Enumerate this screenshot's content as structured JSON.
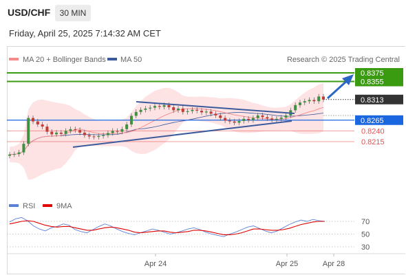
{
  "header": {
    "symbol": "USD/CHF",
    "timeframe": "30 MIN",
    "datetime": "Friday, April 25, 2025 7:14:32 AM CET"
  },
  "legend": {
    "ma20_label": "MA 20 + Bollinger Bands",
    "ma50_label": "MA 50",
    "credit": "Research © 2025 Trading Central",
    "rsi_label": "RSI",
    "rsi_ma_label": "9MA"
  },
  "colors": {
    "ma20": "#f48a8a",
    "ma50": "#3a5a9c",
    "bands_fill": "#fde3e3",
    "target": "#3a9a10",
    "pivot": "#1a66e0",
    "support": "#e25050",
    "current": "#333333",
    "trendline": "#3a5a9c",
    "rsi": "#5a80d8",
    "rsi_ma": "#e00000"
  },
  "levels": {
    "target2": "0.8375",
    "target1": "0.8355",
    "current": "0.8313",
    "pivot": "0.8265",
    "support1": "0.8240",
    "support2": "0.8215"
  },
  "chart_data": [
    {
      "type": "candlestick",
      "title": "USD/CHF 30 MIN",
      "y_range_approx": [
        0.8135,
        0.8385
      ],
      "x_labels": [
        "Apr 24",
        "Apr 25",
        "Apr 28"
      ],
      "price_closes_approx": [
        0.8185,
        0.8186,
        0.819,
        0.821,
        0.827,
        0.8262,
        0.8255,
        0.825,
        0.8238,
        0.8232,
        0.8236,
        0.8233,
        0.824,
        0.8244,
        0.8242,
        0.8236,
        0.823,
        0.8227,
        0.8226,
        0.8228,
        0.823,
        0.8235,
        0.824,
        0.8238,
        0.8244,
        0.8255,
        0.8275,
        0.8284,
        0.8289,
        0.8292,
        0.8294,
        0.8298,
        0.8296,
        0.83,
        0.8295,
        0.8288,
        0.8292,
        0.8284,
        0.8286,
        0.8289,
        0.8287,
        0.8283,
        0.8285,
        0.828,
        0.8276,
        0.827,
        0.8264,
        0.8262,
        0.8259,
        0.8263,
        0.8268,
        0.8265,
        0.827,
        0.8276,
        0.8272,
        0.8269,
        0.8266,
        0.8268,
        0.8271,
        0.8276,
        0.8288,
        0.83,
        0.8306,
        0.8309,
        0.8312,
        0.8309,
        0.832,
        0.8313
      ],
      "ma20_label": "MA 20 + Bollinger Bands",
      "ma50_label": "MA 50",
      "levels": [
        {
          "label": "0.8375",
          "role": "target"
        },
        {
          "label": "0.8355",
          "role": "target"
        },
        {
          "label": "0.8313",
          "role": "current"
        },
        {
          "label": "0.8265",
          "role": "pivot"
        },
        {
          "label": "0.8240",
          "role": "support"
        },
        {
          "label": "0.8215",
          "role": "support"
        }
      ],
      "pattern": "symmetrical triangle with upward breakout arrow toward 0.8375"
    },
    {
      "type": "line",
      "title": "RSI",
      "series": [
        {
          "name": "RSI",
          "values": [
            69,
            74,
            76,
            71,
            63,
            58,
            55,
            60,
            62,
            66,
            64,
            57,
            54,
            52,
            57,
            62,
            66,
            63,
            58,
            54,
            51,
            49,
            52,
            55,
            58,
            56,
            53,
            50,
            52,
            55,
            58,
            60,
            57,
            53,
            50,
            48,
            46,
            50,
            53,
            57,
            61,
            63,
            59,
            55,
            52,
            55,
            60,
            65,
            69,
            72,
            70,
            73,
            71,
            70
          ]
        },
        {
          "name": "9MA",
          "values": [
            66,
            68,
            70,
            71,
            70,
            67,
            64,
            62,
            61,
            62,
            62,
            60,
            58,
            56,
            56,
            58,
            60,
            61,
            60,
            58,
            56,
            53,
            52,
            53,
            54,
            55,
            55,
            53,
            52,
            53,
            54,
            56,
            56,
            55,
            53,
            51,
            49,
            49,
            50,
            52,
            55,
            58,
            58,
            57,
            56,
            56,
            57,
            59,
            62,
            65,
            67,
            69,
            70,
            70
          ]
        }
      ],
      "y_ticks": [
        "70",
        "50",
        "30"
      ],
      "ylim": [
        20,
        80
      ]
    }
  ]
}
